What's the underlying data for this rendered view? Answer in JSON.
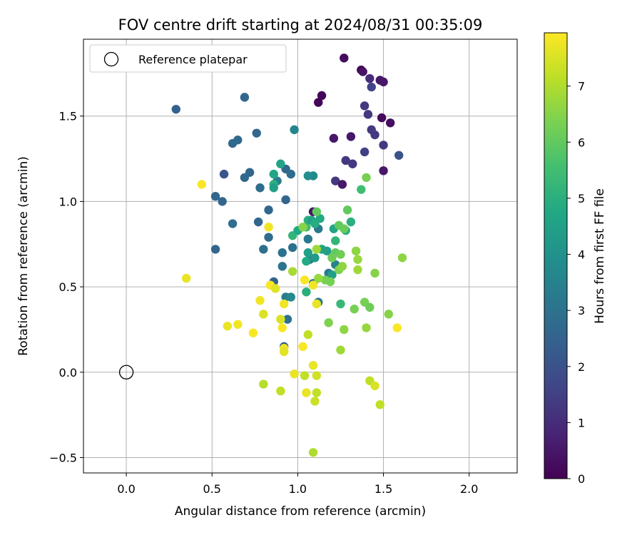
{
  "chart_data": {
    "type": "scatter",
    "title": "FOV centre drift starting at 2024/08/31 00:35:09",
    "xlabel": "Angular distance from reference (arcmin)",
    "ylabel": "Rotation from reference (arcmin)",
    "xlim": [
      -0.25,
      2.28
    ],
    "ylim": [
      -0.59,
      1.95
    ],
    "xticks": [
      0.0,
      0.5,
      1.0,
      1.5,
      2.0
    ],
    "xtick_labels": [
      "0.0",
      "0.5",
      "1.0",
      "1.5",
      "2.0"
    ],
    "yticks": [
      -0.5,
      0.0,
      0.5,
      1.0,
      1.5
    ],
    "ytick_labels": [
      "−0.5",
      "0.0",
      "0.5",
      "1.0",
      "1.5"
    ],
    "grid": true,
    "legend": {
      "placement": "top-left",
      "entries": [
        "Reference platepar"
      ]
    },
    "reference_point": {
      "x": 0.0,
      "y": 0.0
    },
    "colorbar": {
      "label": "Hours from first FF file",
      "colormap": "viridis",
      "range": [
        0,
        7.95
      ],
      "ticks": [
        0,
        1,
        2,
        3,
        4,
        5,
        6,
        7
      ],
      "tick_labels": [
        "0",
        "1",
        "2",
        "3",
        "4",
        "5",
        "6",
        "7"
      ]
    },
    "points": [
      {
        "x": 1.12,
        "y": 1.58,
        "c": 0.1
      },
      {
        "x": 1.14,
        "y": 1.62,
        "c": 0.1
      },
      {
        "x": 1.27,
        "y": 1.84,
        "c": 0.25
      },
      {
        "x": 1.37,
        "y": 1.77,
        "c": 0.1
      },
      {
        "x": 1.38,
        "y": 1.76,
        "c": 0.4
      },
      {
        "x": 1.48,
        "y": 1.71,
        "c": 0.5
      },
      {
        "x": 1.5,
        "y": 1.7,
        "c": 0.5
      },
      {
        "x": 1.42,
        "y": 1.72,
        "c": 1.0
      },
      {
        "x": 1.43,
        "y": 1.67,
        "c": 1.6
      },
      {
        "x": 1.49,
        "y": 1.49,
        "c": 0.2
      },
      {
        "x": 1.54,
        "y": 1.46,
        "c": 0.3
      },
      {
        "x": 1.39,
        "y": 1.56,
        "c": 1.3
      },
      {
        "x": 1.41,
        "y": 1.51,
        "c": 1.3
      },
      {
        "x": 1.43,
        "y": 1.42,
        "c": 1.3
      },
      {
        "x": 1.45,
        "y": 1.39,
        "c": 1.3
      },
      {
        "x": 1.21,
        "y": 1.37,
        "c": 0.5
      },
      {
        "x": 1.31,
        "y": 1.38,
        "c": 0.5
      },
      {
        "x": 1.5,
        "y": 1.33,
        "c": 1.3
      },
      {
        "x": 1.39,
        "y": 1.29,
        "c": 1.5
      },
      {
        "x": 1.59,
        "y": 1.27,
        "c": 2.0
      },
      {
        "x": 1.28,
        "y": 1.24,
        "c": 1.3
      },
      {
        "x": 1.32,
        "y": 1.22,
        "c": 1.3
      },
      {
        "x": 1.5,
        "y": 1.18,
        "c": 0.5
      },
      {
        "x": 1.22,
        "y": 1.12,
        "c": 1.3
      },
      {
        "x": 1.26,
        "y": 1.1,
        "c": 0.5
      },
      {
        "x": 0.29,
        "y": 1.54,
        "c": 2.5
      },
      {
        "x": 0.69,
        "y": 1.61,
        "c": 2.6
      },
      {
        "x": 0.76,
        "y": 1.4,
        "c": 2.6
      },
      {
        "x": 0.65,
        "y": 1.36,
        "c": 2.7
      },
      {
        "x": 0.62,
        "y": 1.34,
        "c": 2.7
      },
      {
        "x": 0.57,
        "y": 1.16,
        "c": 2.1
      },
      {
        "x": 0.72,
        "y": 1.17,
        "c": 2.6
      },
      {
        "x": 0.69,
        "y": 1.14,
        "c": 2.7
      },
      {
        "x": 0.52,
        "y": 1.03,
        "c": 2.6
      },
      {
        "x": 0.56,
        "y": 1.0,
        "c": 2.6
      },
      {
        "x": 0.78,
        "y": 1.08,
        "c": 2.8
      },
      {
        "x": 0.88,
        "y": 1.12,
        "c": 3.3
      },
      {
        "x": 0.93,
        "y": 1.19,
        "c": 2.6
      },
      {
        "x": 0.96,
        "y": 1.16,
        "c": 2.8
      },
      {
        "x": 0.93,
        "y": 1.01,
        "c": 2.6
      },
      {
        "x": 0.62,
        "y": 0.87,
        "c": 2.9
      },
      {
        "x": 0.52,
        "y": 0.72,
        "c": 2.6
      },
      {
        "x": 0.77,
        "y": 0.88,
        "c": 2.6
      },
      {
        "x": 0.83,
        "y": 0.95,
        "c": 2.6
      },
      {
        "x": 0.83,
        "y": 0.79,
        "c": 2.8
      },
      {
        "x": 0.8,
        "y": 0.72,
        "c": 2.9
      },
      {
        "x": 0.91,
        "y": 0.7,
        "c": 3.0
      },
      {
        "x": 0.91,
        "y": 0.62,
        "c": 3.1
      },
      {
        "x": 0.86,
        "y": 0.53,
        "c": 2.5
      },
      {
        "x": 0.93,
        "y": 0.44,
        "c": 3.3
      },
      {
        "x": 0.96,
        "y": 0.44,
        "c": 3.7
      },
      {
        "x": 0.94,
        "y": 0.31,
        "c": 3.0
      },
      {
        "x": 0.92,
        "y": 0.15,
        "c": 2.4
      },
      {
        "x": 0.98,
        "y": 1.42,
        "c": 3.6
      },
      {
        "x": 0.97,
        "y": 0.73,
        "c": 3.0
      },
      {
        "x": 1.09,
        "y": 0.94,
        "c": 0.4
      },
      {
        "x": 1.06,
        "y": 0.78,
        "c": 3.2
      },
      {
        "x": 1.07,
        "y": 0.66,
        "c": 3.0
      },
      {
        "x": 1.09,
        "y": 0.52,
        "c": 3.1
      },
      {
        "x": 1.14,
        "y": 0.72,
        "c": 3.7
      },
      {
        "x": 1.18,
        "y": 0.58,
        "c": 3.2
      },
      {
        "x": 1.22,
        "y": 0.63,
        "c": 3.5
      },
      {
        "x": 1.12,
        "y": 0.41,
        "c": 3.1
      },
      {
        "x": 1.09,
        "y": 1.15,
        "c": 3.7
      },
      {
        "x": 1.06,
        "y": 1.15,
        "c": 3.9
      },
      {
        "x": 1.12,
        "y": 0.84,
        "c": 3.2
      },
      {
        "x": 0.9,
        "y": 1.22,
        "c": 4.6
      },
      {
        "x": 0.86,
        "y": 1.16,
        "c": 4.7
      },
      {
        "x": 0.86,
        "y": 1.1,
        "c": 5.0
      },
      {
        "x": 0.86,
        "y": 1.08,
        "c": 4.5
      },
      {
        "x": 0.97,
        "y": 0.8,
        "c": 5.2
      },
      {
        "x": 1.0,
        "y": 0.83,
        "c": 4.8
      },
      {
        "x": 1.05,
        "y": 0.85,
        "c": 5.5
      },
      {
        "x": 1.06,
        "y": 0.89,
        "c": 5.0
      },
      {
        "x": 1.08,
        "y": 0.89,
        "c": 4.6
      },
      {
        "x": 1.1,
        "y": 0.87,
        "c": 4.9
      },
      {
        "x": 1.13,
        "y": 0.9,
        "c": 4.8
      },
      {
        "x": 1.06,
        "y": 0.7,
        "c": 4.5
      },
      {
        "x": 1.1,
        "y": 0.67,
        "c": 4.3
      },
      {
        "x": 1.14,
        "y": 0.72,
        "c": 4.6
      },
      {
        "x": 1.17,
        "y": 0.71,
        "c": 4.5
      },
      {
        "x": 1.2,
        "y": 0.57,
        "c": 4.5
      },
      {
        "x": 1.05,
        "y": 0.65,
        "c": 4.8
      },
      {
        "x": 1.05,
        "y": 0.47,
        "c": 5.0
      },
      {
        "x": 1.31,
        "y": 0.88,
        "c": 5.0
      },
      {
        "x": 1.28,
        "y": 0.83,
        "c": 4.9
      },
      {
        "x": 1.21,
        "y": 0.84,
        "c": 4.7
      },
      {
        "x": 1.22,
        "y": 0.77,
        "c": 5.2
      },
      {
        "x": 1.25,
        "y": 0.4,
        "c": 5.3
      },
      {
        "x": 1.37,
        "y": 1.07,
        "c": 5.5
      },
      {
        "x": 1.11,
        "y": 0.94,
        "c": 6.0
      },
      {
        "x": 1.29,
        "y": 0.95,
        "c": 6.0
      },
      {
        "x": 1.24,
        "y": 0.86,
        "c": 6.0
      },
      {
        "x": 1.27,
        "y": 0.84,
        "c": 6.1
      },
      {
        "x": 1.22,
        "y": 0.7,
        "c": 6.0
      },
      {
        "x": 1.2,
        "y": 0.67,
        "c": 6.2
      },
      {
        "x": 1.25,
        "y": 0.69,
        "c": 6.2
      },
      {
        "x": 1.16,
        "y": 0.54,
        "c": 6.3
      },
      {
        "x": 1.19,
        "y": 0.53,
        "c": 6.3
      },
      {
        "x": 1.24,
        "y": 0.6,
        "c": 6.4
      },
      {
        "x": 1.26,
        "y": 0.62,
        "c": 6.6
      },
      {
        "x": 1.12,
        "y": 0.55,
        "c": 6.7
      },
      {
        "x": 1.4,
        "y": 1.14,
        "c": 6.3
      },
      {
        "x": 1.34,
        "y": 0.71,
        "c": 6.6
      },
      {
        "x": 1.35,
        "y": 0.66,
        "c": 6.7
      },
      {
        "x": 1.35,
        "y": 0.6,
        "c": 6.8
      },
      {
        "x": 1.45,
        "y": 0.58,
        "c": 6.5
      },
      {
        "x": 1.61,
        "y": 0.67,
        "c": 6.6
      },
      {
        "x": 1.33,
        "y": 0.37,
        "c": 6.3
      },
      {
        "x": 1.39,
        "y": 0.41,
        "c": 6.3
      },
      {
        "x": 1.42,
        "y": 0.38,
        "c": 6.2
      },
      {
        "x": 1.53,
        "y": 0.34,
        "c": 6.5
      },
      {
        "x": 1.18,
        "y": 0.29,
        "c": 6.4
      },
      {
        "x": 1.27,
        "y": 0.25,
        "c": 6.6
      },
      {
        "x": 1.4,
        "y": 0.26,
        "c": 6.7
      },
      {
        "x": 1.25,
        "y": 0.13,
        "c": 6.8
      },
      {
        "x": 0.97,
        "y": 0.59,
        "c": 6.9
      },
      {
        "x": 1.03,
        "y": 0.85,
        "c": 6.5
      },
      {
        "x": 1.11,
        "y": 0.72,
        "c": 6.8
      },
      {
        "x": 0.44,
        "y": 1.1,
        "c": 7.9
      },
      {
        "x": 0.35,
        "y": 0.55,
        "c": 7.7
      },
      {
        "x": 0.83,
        "y": 0.85,
        "c": 7.8
      },
      {
        "x": 0.84,
        "y": 0.51,
        "c": 7.9
      },
      {
        "x": 0.87,
        "y": 0.49,
        "c": 7.6
      },
      {
        "x": 0.78,
        "y": 0.42,
        "c": 7.8
      },
      {
        "x": 0.8,
        "y": 0.34,
        "c": 7.5
      },
      {
        "x": 0.92,
        "y": 0.4,
        "c": 7.8
      },
      {
        "x": 0.9,
        "y": 0.31,
        "c": 7.5
      },
      {
        "x": 0.91,
        "y": 0.26,
        "c": 7.9
      },
      {
        "x": 0.65,
        "y": 0.28,
        "c": 7.8
      },
      {
        "x": 0.59,
        "y": 0.27,
        "c": 7.7
      },
      {
        "x": 0.74,
        "y": 0.23,
        "c": 7.9
      },
      {
        "x": 0.92,
        "y": 0.14,
        "c": 7.8
      },
      {
        "x": 0.92,
        "y": 0.12,
        "c": 7.6
      },
      {
        "x": 1.03,
        "y": 0.15,
        "c": 7.9
      },
      {
        "x": 1.09,
        "y": 0.04,
        "c": 7.7
      },
      {
        "x": 0.98,
        "y": -0.01,
        "c": 7.7
      },
      {
        "x": 1.04,
        "y": -0.02,
        "c": 7.2
      },
      {
        "x": 1.11,
        "y": -0.02,
        "c": 7.4
      },
      {
        "x": 0.8,
        "y": -0.07,
        "c": 7.1
      },
      {
        "x": 0.9,
        "y": -0.11,
        "c": 7.2
      },
      {
        "x": 1.05,
        "y": -0.12,
        "c": 7.7
      },
      {
        "x": 1.11,
        "y": -0.12,
        "c": 7.2
      },
      {
        "x": 1.1,
        "y": -0.17,
        "c": 7.3
      },
      {
        "x": 1.42,
        "y": -0.05,
        "c": 7.2
      },
      {
        "x": 1.45,
        "y": -0.08,
        "c": 7.5
      },
      {
        "x": 1.48,
        "y": -0.19,
        "c": 7.2
      },
      {
        "x": 1.09,
        "y": -0.47,
        "c": 7.0
      },
      {
        "x": 1.04,
        "y": 0.54,
        "c": 7.9
      },
      {
        "x": 1.09,
        "y": 0.51,
        "c": 7.8
      },
      {
        "x": 1.11,
        "y": 0.4,
        "c": 7.7
      },
      {
        "x": 1.06,
        "y": 0.22,
        "c": 7.2
      },
      {
        "x": 1.58,
        "y": 0.26,
        "c": 7.9
      }
    ]
  }
}
